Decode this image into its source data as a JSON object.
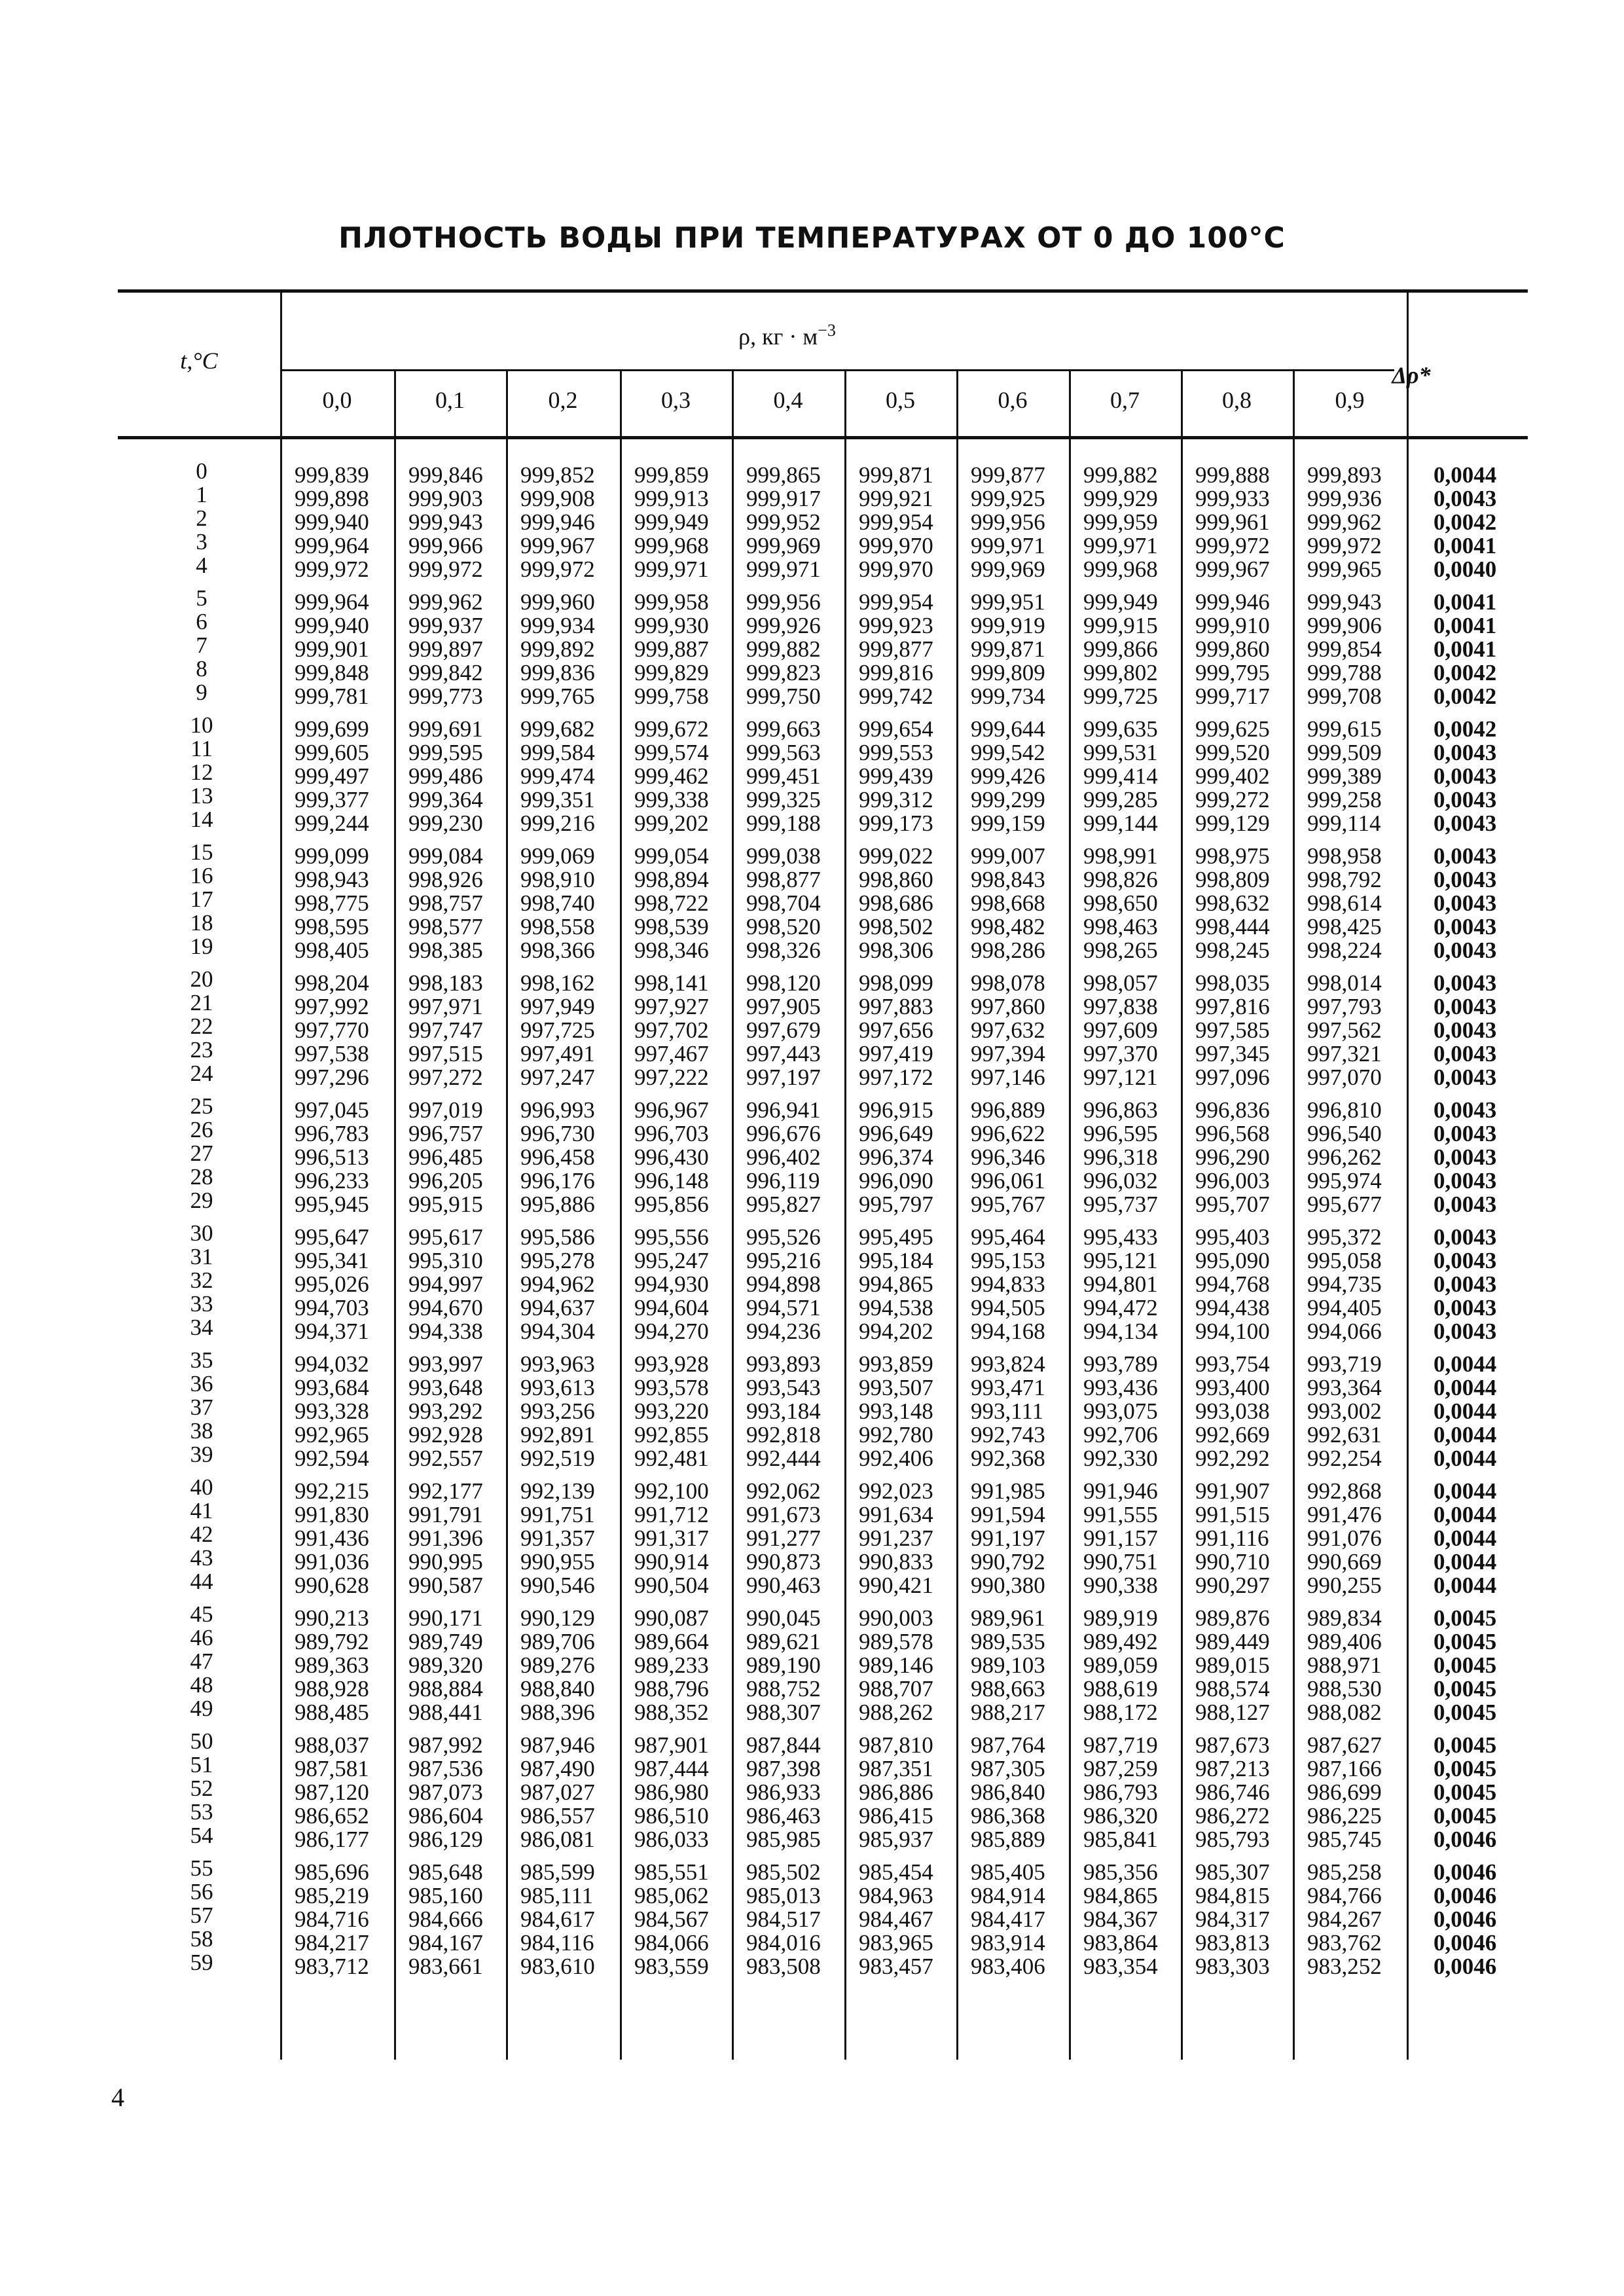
{
  "title": "ПЛОТНОСТЬ ВОДЫ ПРИ ТЕМПЕРАТУРАХ ОТ 0 ДО 100°С",
  "header": {
    "t_label": "t,°C",
    "rho_label": "ρ, кг · м",
    "rho_exp": "−3",
    "columns": [
      "0,0",
      "0,1",
      "0,2",
      "0,3",
      "0,4",
      "0,5",
      "0,6",
      "0,7",
      "0,8",
      "0,9"
    ],
    "delta_label": "Δρ*"
  },
  "rows": [
    [
      "0",
      "999,839",
      "999,846",
      "999,852",
      "999,859",
      "999,865",
      "999,871",
      "999,877",
      "999,882",
      "999,888",
      "999,893",
      "0,0044"
    ],
    [
      "1",
      "999,898",
      "999,903",
      "999,908",
      "999,913",
      "999,917",
      "999,921",
      "999,925",
      "999,929",
      "999,933",
      "999,936",
      "0,0043"
    ],
    [
      "2",
      "999,940",
      "999,943",
      "999,946",
      "999,949",
      "999,952",
      "999,954",
      "999,956",
      "999,959",
      "999,961",
      "999,962",
      "0,0042"
    ],
    [
      "3",
      "999,964",
      "999,966",
      "999,967",
      "999,968",
      "999,969",
      "999,970",
      "999,971",
      "999,971",
      "999,972",
      "999,972",
      "0,0041"
    ],
    [
      "4",
      "999,972",
      "999,972",
      "999,972",
      "999,971",
      "999,971",
      "999,970",
      "999,969",
      "999,968",
      "999,967",
      "999,965",
      "0,0040"
    ],
    [
      "5",
      "999,964",
      "999,962",
      "999,960",
      "999,958",
      "999,956",
      "999,954",
      "999,951",
      "999,949",
      "999,946",
      "999,943",
      "0,0041"
    ],
    [
      "6",
      "999,940",
      "999,937",
      "999,934",
      "999,930",
      "999,926",
      "999,923",
      "999,919",
      "999,915",
      "999,910",
      "999,906",
      "0,0041"
    ],
    [
      "7",
      "999,901",
      "999,897",
      "999,892",
      "999,887",
      "999,882",
      "999,877",
      "999,871",
      "999,866",
      "999,860",
      "999,854",
      "0,0041"
    ],
    [
      "8",
      "999,848",
      "999,842",
      "999,836",
      "999,829",
      "999,823",
      "999,816",
      "999,809",
      "999,802",
      "999,795",
      "999,788",
      "0,0042"
    ],
    [
      "9",
      "999,781",
      "999,773",
      "999,765",
      "999,758",
      "999,750",
      "999,742",
      "999,734",
      "999,725",
      "999,717",
      "999,708",
      "0,0042"
    ],
    [
      "10",
      "999,699",
      "999,691",
      "999,682",
      "999,672",
      "999,663",
      "999,654",
      "999,644",
      "999,635",
      "999,625",
      "999,615",
      "0,0042"
    ],
    [
      "11",
      "999,605",
      "999,595",
      "999,584",
      "999,574",
      "999,563",
      "999,553",
      "999,542",
      "999,531",
      "999,520",
      "999,509",
      "0,0043"
    ],
    [
      "12",
      "999,497",
      "999,486",
      "999,474",
      "999,462",
      "999,451",
      "999,439",
      "999,426",
      "999,414",
      "999,402",
      "999,389",
      "0,0043"
    ],
    [
      "13",
      "999,377",
      "999,364",
      "999,351",
      "999,338",
      "999,325",
      "999,312",
      "999,299",
      "999,285",
      "999,272",
      "999,258",
      "0,0043"
    ],
    [
      "14",
      "999,244",
      "999,230",
      "999,216",
      "999,202",
      "999,188",
      "999,173",
      "999,159",
      "999,144",
      "999,129",
      "999,114",
      "0,0043"
    ],
    [
      "15",
      "999,099",
      "999,084",
      "999,069",
      "999,054",
      "999,038",
      "999,022",
      "999,007",
      "998,991",
      "998,975",
      "998,958",
      "0,0043"
    ],
    [
      "16",
      "998,943",
      "998,926",
      "998,910",
      "998,894",
      "998,877",
      "998,860",
      "998,843",
      "998,826",
      "998,809",
      "998,792",
      "0,0043"
    ],
    [
      "17",
      "998,775",
      "998,757",
      "998,740",
      "998,722",
      "998,704",
      "998,686",
      "998,668",
      "998,650",
      "998,632",
      "998,614",
      "0,0043"
    ],
    [
      "18",
      "998,595",
      "998,577",
      "998,558",
      "998,539",
      "998,520",
      "998,502",
      "998,482",
      "998,463",
      "998,444",
      "998,425",
      "0,0043"
    ],
    [
      "19",
      "998,405",
      "998,385",
      "998,366",
      "998,346",
      "998,326",
      "998,306",
      "998,286",
      "998,265",
      "998,245",
      "998,224",
      "0,0043"
    ],
    [
      "20",
      "998,204",
      "998,183",
      "998,162",
      "998,141",
      "998,120",
      "998,099",
      "998,078",
      "998,057",
      "998,035",
      "998,014",
      "0,0043"
    ],
    [
      "21",
      "997,992",
      "997,971",
      "997,949",
      "997,927",
      "997,905",
      "997,883",
      "997,860",
      "997,838",
      "997,816",
      "997,793",
      "0,0043"
    ],
    [
      "22",
      "997,770",
      "997,747",
      "997,725",
      "997,702",
      "997,679",
      "997,656",
      "997,632",
      "997,609",
      "997,585",
      "997,562",
      "0,0043"
    ],
    [
      "23",
      "997,538",
      "997,515",
      "997,491",
      "997,467",
      "997,443",
      "997,419",
      "997,394",
      "997,370",
      "997,345",
      "997,321",
      "0,0043"
    ],
    [
      "24",
      "997,296",
      "997,272",
      "997,247",
      "997,222",
      "997,197",
      "997,172",
      "997,146",
      "997,121",
      "997,096",
      "997,070",
      "0,0043"
    ],
    [
      "25",
      "997,045",
      "997,019",
      "996,993",
      "996,967",
      "996,941",
      "996,915",
      "996,889",
      "996,863",
      "996,836",
      "996,810",
      "0,0043"
    ],
    [
      "26",
      "996,783",
      "996,757",
      "996,730",
      "996,703",
      "996,676",
      "996,649",
      "996,622",
      "996,595",
      "996,568",
      "996,540",
      "0,0043"
    ],
    [
      "27",
      "996,513",
      "996,485",
      "996,458",
      "996,430",
      "996,402",
      "996,374",
      "996,346",
      "996,318",
      "996,290",
      "996,262",
      "0,0043"
    ],
    [
      "28",
      "996,233",
      "996,205",
      "996,176",
      "996,148",
      "996,119",
      "996,090",
      "996,061",
      "996,032",
      "996,003",
      "995,974",
      "0,0043"
    ],
    [
      "29",
      "995,945",
      "995,915",
      "995,886",
      "995,856",
      "995,827",
      "995,797",
      "995,767",
      "995,737",
      "995,707",
      "995,677",
      "0,0043"
    ],
    [
      "30",
      "995,647",
      "995,617",
      "995,586",
      "995,556",
      "995,526",
      "995,495",
      "995,464",
      "995,433",
      "995,403",
      "995,372",
      "0,0043"
    ],
    [
      "31",
      "995,341",
      "995,310",
      "995,278",
      "995,247",
      "995,216",
      "995,184",
      "995,153",
      "995,121",
      "995,090",
      "995,058",
      "0,0043"
    ],
    [
      "32",
      "995,026",
      "994,997",
      "994,962",
      "994,930",
      "994,898",
      "994,865",
      "994,833",
      "994,801",
      "994,768",
      "994,735",
      "0,0043"
    ],
    [
      "33",
      "994,703",
      "994,670",
      "994,637",
      "994,604",
      "994,571",
      "994,538",
      "994,505",
      "994,472",
      "994,438",
      "994,405",
      "0,0043"
    ],
    [
      "34",
      "994,371",
      "994,338",
      "994,304",
      "994,270",
      "994,236",
      "994,202",
      "994,168",
      "994,134",
      "994,100",
      "994,066",
      "0,0043"
    ],
    [
      "35",
      "994,032",
      "993,997",
      "993,963",
      "993,928",
      "993,893",
      "993,859",
      "993,824",
      "993,789",
      "993,754",
      "993,719",
      "0,0044"
    ],
    [
      "36",
      "993,684",
      "993,648",
      "993,613",
      "993,578",
      "993,543",
      "993,507",
      "993,471",
      "993,436",
      "993,400",
      "993,364",
      "0,0044"
    ],
    [
      "37",
      "993,328",
      "993,292",
      "993,256",
      "993,220",
      "993,184",
      "993,148",
      "993,111",
      "993,075",
      "993,038",
      "993,002",
      "0,0044"
    ],
    [
      "38",
      "992,965",
      "992,928",
      "992,891",
      "992,855",
      "992,818",
      "992,780",
      "992,743",
      "992,706",
      "992,669",
      "992,631",
      "0,0044"
    ],
    [
      "39",
      "992,594",
      "992,557",
      "992,519",
      "992,481",
      "992,444",
      "992,406",
      "992,368",
      "992,330",
      "992,292",
      "992,254",
      "0,0044"
    ],
    [
      "40",
      "992,215",
      "992,177",
      "992,139",
      "992,100",
      "992,062",
      "992,023",
      "991,985",
      "991,946",
      "991,907",
      "992,868",
      "0,0044"
    ],
    [
      "41",
      "991,830",
      "991,791",
      "991,751",
      "991,712",
      "991,673",
      "991,634",
      "991,594",
      "991,555",
      "991,515",
      "991,476",
      "0,0044"
    ],
    [
      "42",
      "991,436",
      "991,396",
      "991,357",
      "991,317",
      "991,277",
      "991,237",
      "991,197",
      "991,157",
      "991,116",
      "991,076",
      "0,0044"
    ],
    [
      "43",
      "991,036",
      "990,995",
      "990,955",
      "990,914",
      "990,873",
      "990,833",
      "990,792",
      "990,751",
      "990,710",
      "990,669",
      "0,0044"
    ],
    [
      "44",
      "990,628",
      "990,587",
      "990,546",
      "990,504",
      "990,463",
      "990,421",
      "990,380",
      "990,338",
      "990,297",
      "990,255",
      "0,0044"
    ],
    [
      "45",
      "990,213",
      "990,171",
      "990,129",
      "990,087",
      "990,045",
      "990,003",
      "989,961",
      "989,919",
      "989,876",
      "989,834",
      "0,0045"
    ],
    [
      "46",
      "989,792",
      "989,749",
      "989,706",
      "989,664",
      "989,621",
      "989,578",
      "989,535",
      "989,492",
      "989,449",
      "989,406",
      "0,0045"
    ],
    [
      "47",
      "989,363",
      "989,320",
      "989,276",
      "989,233",
      "989,190",
      "989,146",
      "989,103",
      "989,059",
      "989,015",
      "988,971",
      "0,0045"
    ],
    [
      "48",
      "988,928",
      "988,884",
      "988,840",
      "988,796",
      "988,752",
      "988,707",
      "988,663",
      "988,619",
      "988,574",
      "988,530",
      "0,0045"
    ],
    [
      "49",
      "988,485",
      "988,441",
      "988,396",
      "988,352",
      "988,307",
      "988,262",
      "988,217",
      "988,172",
      "988,127",
      "988,082",
      "0,0045"
    ],
    [
      "50",
      "988,037",
      "987,992",
      "987,946",
      "987,901",
      "987,844",
      "987,810",
      "987,764",
      "987,719",
      "987,673",
      "987,627",
      "0,0045"
    ],
    [
      "51",
      "987,581",
      "987,536",
      "987,490",
      "987,444",
      "987,398",
      "987,351",
      "987,305",
      "987,259",
      "987,213",
      "987,166",
      "0,0045"
    ],
    [
      "52",
      "987,120",
      "987,073",
      "987,027",
      "986,980",
      "986,933",
      "986,886",
      "986,840",
      "986,793",
      "986,746",
      "986,699",
      "0,0045"
    ],
    [
      "53",
      "986,652",
      "986,604",
      "986,557",
      "986,510",
      "986,463",
      "986,415",
      "986,368",
      "986,320",
      "986,272",
      "986,225",
      "0,0045"
    ],
    [
      "54",
      "986,177",
      "986,129",
      "986,081",
      "986,033",
      "985,985",
      "985,937",
      "985,889",
      "985,841",
      "985,793",
      "985,745",
      "0,0046"
    ],
    [
      "55",
      "985,696",
      "985,648",
      "985,599",
      "985,551",
      "985,502",
      "985,454",
      "985,405",
      "985,356",
      "985,307",
      "985,258",
      "0,0046"
    ],
    [
      "56",
      "985,219",
      "985,160",
      "985,111",
      "985,062",
      "985,013",
      "984,963",
      "984,914",
      "984,865",
      "984,815",
      "984,766",
      "0,0046"
    ],
    [
      "57",
      "984,716",
      "984,666",
      "984,617",
      "984,567",
      "984,517",
      "984,467",
      "984,417",
      "984,367",
      "984,317",
      "984,267",
      "0,0046"
    ],
    [
      "58",
      "984,217",
      "984,167",
      "984,116",
      "984,066",
      "984,016",
      "983,965",
      "983,914",
      "983,864",
      "983,813",
      "983,762",
      "0,0046"
    ],
    [
      "59",
      "983,712",
      "983,661",
      "983,610",
      "983,559",
      "983,508",
      "983,457",
      "983,406",
      "983,354",
      "983,303",
      "983,252",
      "0,0046"
    ]
  ],
  "page_number": "4"
}
